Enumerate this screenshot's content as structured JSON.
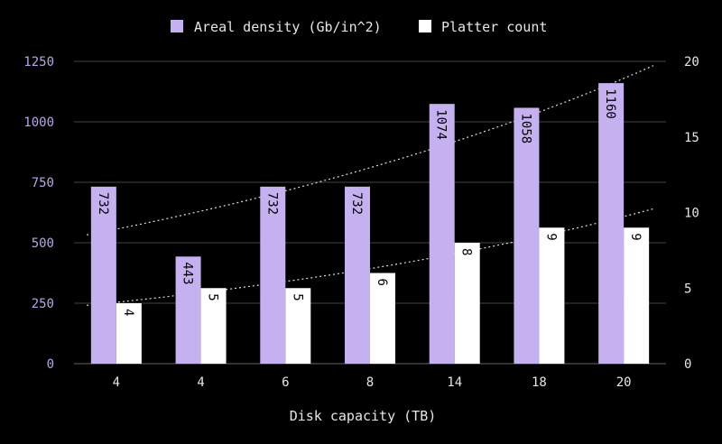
{
  "chart_data": {
    "type": "bar",
    "title": "",
    "xlabel": "Disk capacity (TB)",
    "ylabel": "",
    "ylabel_right": "",
    "categories": [
      "4",
      "4",
      "6",
      "8",
      "14",
      "18",
      "20"
    ],
    "series": [
      {
        "name": "Areal density (Gb/in^2)",
        "axis": "left",
        "color": "#c5b0f0",
        "values": [
          732,
          443,
          732,
          732,
          1074,
          1058,
          1160
        ]
      },
      {
        "name": "Platter count",
        "axis": "right",
        "color": "#ffffff",
        "values": [
          4,
          5,
          5,
          6,
          8,
          9,
          9
        ]
      }
    ],
    "trendlines": [
      {
        "series": "Areal density (Gb/in^2)",
        "kind": "exponential",
        "style": "dotted"
      },
      {
        "series": "Platter count",
        "kind": "exponential",
        "style": "dotted"
      }
    ],
    "ylim_left": [
      0,
      1250
    ],
    "yticks_left": [
      "0",
      "250",
      "500",
      "750",
      "1000",
      "1250"
    ],
    "ylim_right": [
      0,
      20
    ],
    "yticks_right": [
      "0",
      "5",
      "10",
      "15",
      "20"
    ],
    "grid": true,
    "legend_position": "top-center",
    "data_labels": "rotated-inside-top",
    "colors": {
      "background": "#000000",
      "text": "#e6e6e6",
      "left_tick_text": "#b9a6e8",
      "grid": "#444444"
    }
  }
}
